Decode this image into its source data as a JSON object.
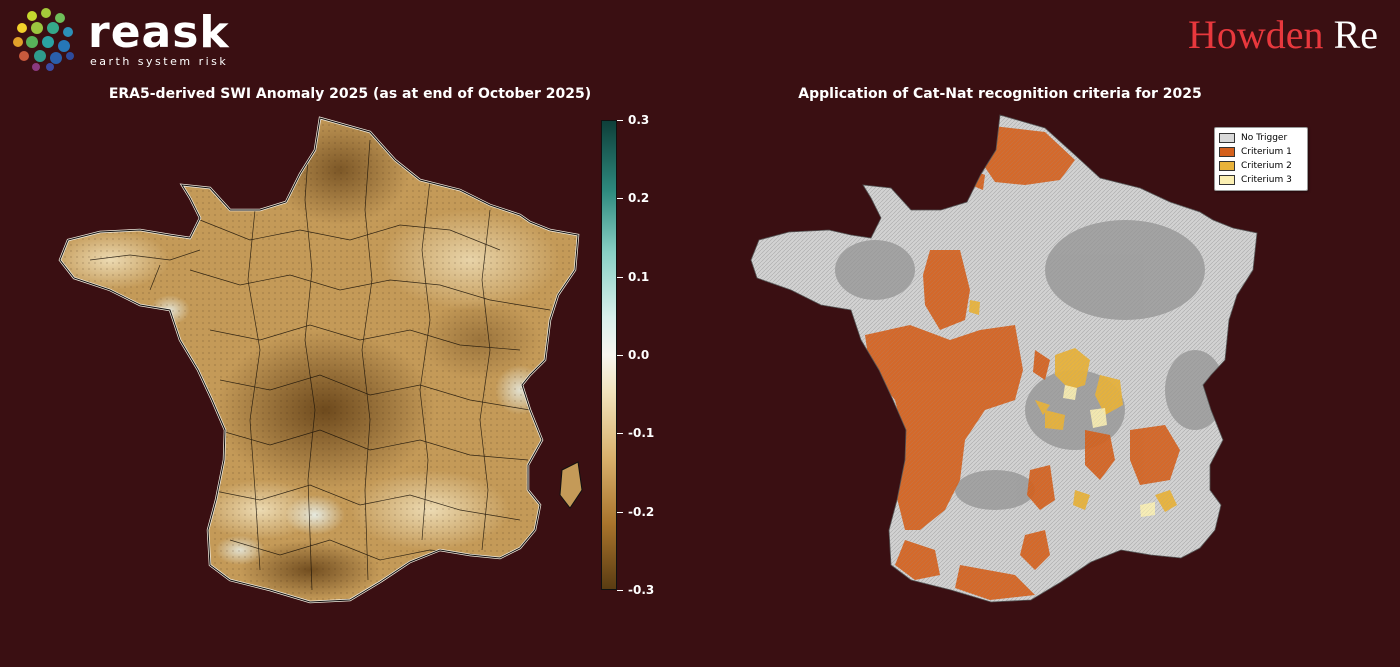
{
  "logo_left": {
    "word": "reask",
    "tagline": "earth system risk"
  },
  "logo_right": {
    "part1": "Howden",
    "part2": "Re"
  },
  "left_panel": {
    "title": "ERA5-derived SWI Anomaly 2025 (as at end of October 2025)",
    "colorbar": {
      "range": [
        -0.3,
        0.3
      ],
      "ticks": [
        "0.3",
        "0.2",
        "0.1",
        "0.0",
        "-0.1",
        "-0.2",
        "-0.3"
      ],
      "colors": [
        "#0e3f3a",
        "#88cfc4",
        "#f7f5ef",
        "#d8b06c",
        "#5a3c12"
      ]
    }
  },
  "right_panel": {
    "title": "Application of Cat-Nat recognition criteria for 2025",
    "legend": [
      {
        "label": "No Trigger",
        "color": "#d9d9d9"
      },
      {
        "label": "Criterium 1",
        "color": "#d4601c"
      },
      {
        "label": "Criterium 2",
        "color": "#e8b23a"
      },
      {
        "label": "Criterium 3",
        "color": "#fbefb2"
      }
    ]
  }
}
